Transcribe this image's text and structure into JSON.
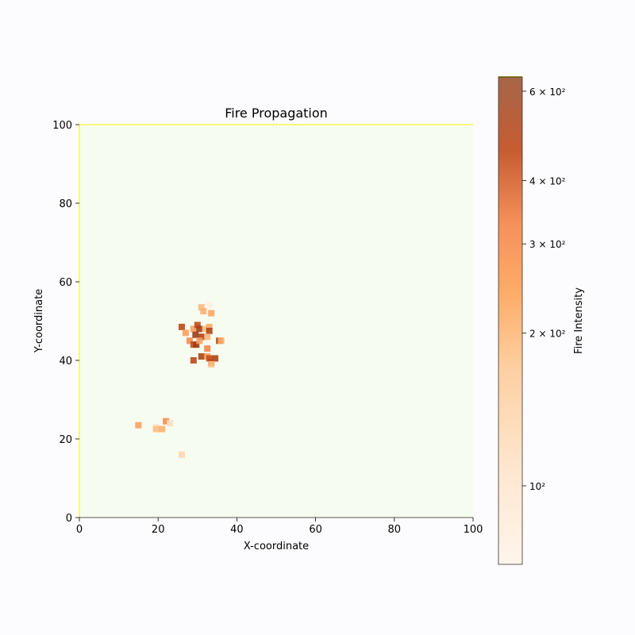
{
  "chart_data": {
    "type": "heatmap",
    "title": "Fire Propagation",
    "xlabel": "X-coordinate",
    "ylabel": "Y-coordinate",
    "xlim": [
      0,
      100
    ],
    "ylim": [
      0,
      100
    ],
    "xticks": [
      0,
      20,
      40,
      60,
      80,
      100
    ],
    "yticks": [
      0,
      20,
      40,
      60,
      80,
      100
    ],
    "grid": false,
    "background_color": "#f7fcf0",
    "colorbar": {
      "label": "Fire Intensity",
      "scale": "log",
      "range": [
        70,
        640
      ],
      "colormap": "Oranges",
      "tick_labels": [
        {
          "value": 100,
          "label": "10²"
        },
        {
          "value": 200,
          "label": "2 × 10²"
        },
        {
          "value": 300,
          "label": "3 × 10²"
        },
        {
          "value": 400,
          "label": "4 × 10²"
        },
        {
          "value": 600,
          "label": "6 × 10²"
        }
      ]
    },
    "cells": [
      {
        "x": 33,
        "y": 54,
        "intensity": 85
      },
      {
        "x": 31,
        "y": 53.5,
        "intensity": 210
      },
      {
        "x": 31.5,
        "y": 52.5,
        "intensity": 230
      },
      {
        "x": 33.5,
        "y": 52,
        "intensity": 250
      },
      {
        "x": 26,
        "y": 48.5,
        "intensity": 520
      },
      {
        "x": 29,
        "y": 48,
        "intensity": 260
      },
      {
        "x": 30,
        "y": 49,
        "intensity": 500
      },
      {
        "x": 30.5,
        "y": 48,
        "intensity": 600
      },
      {
        "x": 32,
        "y": 48,
        "intensity": 200
      },
      {
        "x": 33,
        "y": 48.5,
        "intensity": 240
      },
      {
        "x": 33,
        "y": 47.5,
        "intensity": 560
      },
      {
        "x": 27,
        "y": 47,
        "intensity": 260
      },
      {
        "x": 29.5,
        "y": 46.5,
        "intensity": 620
      },
      {
        "x": 31,
        "y": 46,
        "intensity": 560
      },
      {
        "x": 32.5,
        "y": 46,
        "intensity": 220
      },
      {
        "x": 28,
        "y": 45,
        "intensity": 300
      },
      {
        "x": 29,
        "y": 44,
        "intensity": 480
      },
      {
        "x": 29.7,
        "y": 44,
        "intensity": 620
      },
      {
        "x": 30.5,
        "y": 45,
        "intensity": 260
      },
      {
        "x": 35.5,
        "y": 45,
        "intensity": 540
      },
      {
        "x": 36,
        "y": 45,
        "intensity": 240
      },
      {
        "x": 32.5,
        "y": 43,
        "intensity": 320
      },
      {
        "x": 31,
        "y": 41,
        "intensity": 560
      },
      {
        "x": 32.5,
        "y": 41,
        "intensity": 260
      },
      {
        "x": 33,
        "y": 40.5,
        "intensity": 480
      },
      {
        "x": 34.5,
        "y": 40.5,
        "intensity": 560
      },
      {
        "x": 29,
        "y": 40,
        "intensity": 520
      },
      {
        "x": 33.5,
        "y": 39.5,
        "intensity": 540
      },
      {
        "x": 33.5,
        "y": 39,
        "intensity": 200
      },
      {
        "x": 22,
        "y": 24.5,
        "intensity": 300
      },
      {
        "x": 23,
        "y": 24,
        "intensity": 130
      },
      {
        "x": 15,
        "y": 23.5,
        "intensity": 260
      },
      {
        "x": 19.5,
        "y": 23,
        "intensity": 110
      },
      {
        "x": 19.5,
        "y": 22.5,
        "intensity": 200
      },
      {
        "x": 21,
        "y": 22.5,
        "intensity": 230
      },
      {
        "x": 26,
        "y": 16,
        "intensity": 150
      }
    ]
  }
}
